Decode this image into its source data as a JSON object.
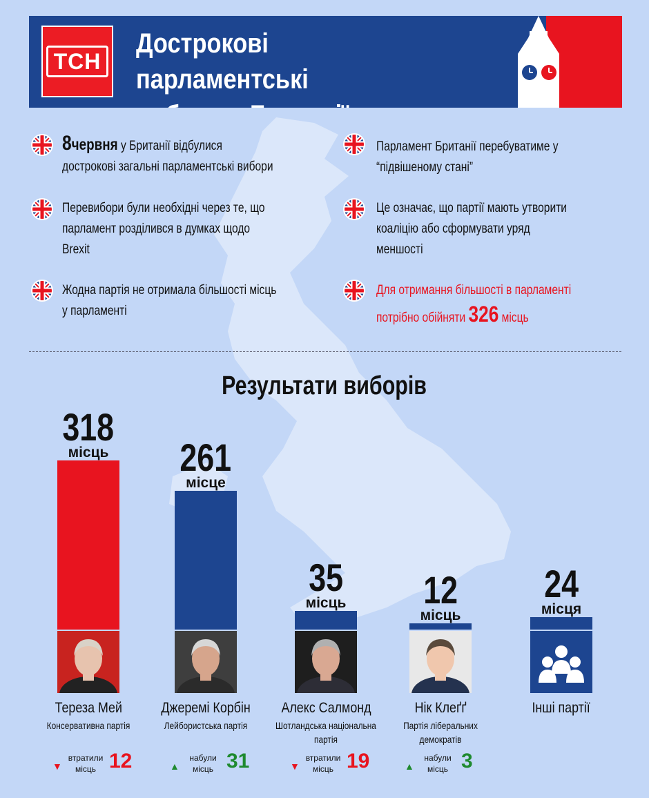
{
  "header": {
    "logo_text": "ТСН",
    "title_line1": "Дострокові парламентські",
    "title_line2": "вибори у Британії"
  },
  "facts": {
    "f1_big": "8",
    "f1_word": "червня",
    "f1_rest": " у Британії відбулися",
    "f1_line2": "дострокові загальні парламентські вибори",
    "f2_line1": "Перевибори були необхідні через те, що",
    "f2_line2": "парламент розділився в думках щодо",
    "f2_line3": "Brexit",
    "f3_line1": "Жодна партія не отримала більшості місць",
    "f3_line2": "у парламенті",
    "f4_line1": "Парламент Британії перебуватиме у",
    "f4_line2": "“підвішеному стані”",
    "f5_line1": "Це означає, що партії мають утворити",
    "f5_line2": "коаліцію або сформувати уряд",
    "f5_line3": "меншості",
    "f6_line1": "Для отримання більшості в парламенті",
    "f6_pre": "потрібно обійняти ",
    "f6_num": "326",
    "f6_post": " місць"
  },
  "results_title": "Результати виборів",
  "colors": {
    "red": "#e8141f",
    "blue": "#1d4590",
    "background": "#c3d7f7",
    "up": "#1f8a2f"
  },
  "chart_data": {
    "type": "bar",
    "title": "Результати виборів",
    "categories": [
      "Тереза Мей",
      "Джеремі Корбін",
      "Алекс Салмонд",
      "Нік Клеґґ",
      "Інші партії"
    ],
    "values": [
      318,
      261,
      35,
      12,
      24
    ],
    "seat_words": [
      "місць",
      "місце",
      "місць",
      "місць",
      "місця"
    ],
    "parties": [
      "Консервативна партія",
      "Лейбористська партія",
      "Шотландська національна партія",
      "Партія ліберальних демократів",
      ""
    ],
    "bar_colors": [
      "#e8141f",
      "#1d4590",
      "#1d4590",
      "#1d4590",
      "#1d4590"
    ],
    "changes": [
      {
        "direction": "down",
        "label_line1": "втратили",
        "label_line2": "місць",
        "value": "12"
      },
      {
        "direction": "up",
        "label_line1": "набули",
        "label_line2": "місць",
        "value": "31"
      },
      {
        "direction": "down",
        "label_line1": "втратили",
        "label_line2": "місць",
        "value": "19"
      },
      {
        "direction": "up",
        "label_line1": "набули",
        "label_line2": "місць",
        "value": "3"
      }
    ]
  }
}
